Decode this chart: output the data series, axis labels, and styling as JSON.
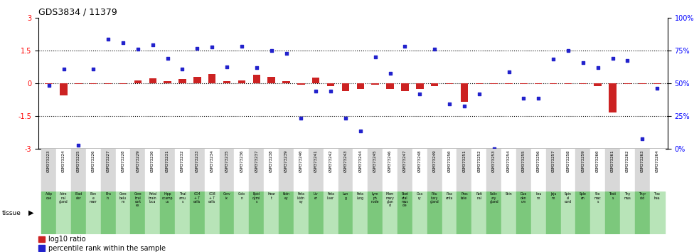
{
  "title": "GDS3834 / 11379",
  "gsm_labels": [
    "GSM373223",
    "GSM373224",
    "GSM373225",
    "GSM373226",
    "GSM373227",
    "GSM373228",
    "GSM373229",
    "GSM373230",
    "GSM373231",
    "GSM373232",
    "GSM373233",
    "GSM373234",
    "GSM373235",
    "GSM373236",
    "GSM373237",
    "GSM373238",
    "GSM373239",
    "GSM373240",
    "GSM373241",
    "GSM373242",
    "GSM373243",
    "GSM373244",
    "GSM373245",
    "GSM373246",
    "GSM373247",
    "GSM373248",
    "GSM373249",
    "GSM373250",
    "GSM373251",
    "GSM373252",
    "GSM373253",
    "GSM373254",
    "GSM373255",
    "GSM373256",
    "GSM373257",
    "GSM373258",
    "GSM373259",
    "GSM373260",
    "GSM373261",
    "GSM373262",
    "GSM373263",
    "GSM373264"
  ],
  "tissue_labels": [
    "Adip\nose",
    "Adre\nnal\ngland",
    "Blad\nder",
    "Bon\ne\nmarr",
    "Bra\nin",
    "Cere\nbelu\nm",
    "Cere\nbral\ncort\nex",
    "Fetal\nbrain\nloca",
    "Hipp\nocamp\nus",
    "Thal\namu\ns",
    "CD4\n+ T\ncells",
    "CD8\n+ T\ncells",
    "Cerv\nix",
    "Colo\nn",
    "Epid\ndymi\ns",
    "Hear\nt",
    "Kidn\ney",
    "Feta\nlkidn\ney",
    "Liv\ner",
    "Feta\nliver",
    "Lun\ng",
    "Feta\nlung",
    "Lym\nph\nnode",
    "Mam\nmary\nglan\nd",
    "Sket\netal\nmus\ncle",
    "Ova\nry",
    "Pitu\nitary\ngland",
    "Plac\nenta",
    "Pros\ntate",
    "Reti\nnal",
    "Saliv\nary\ngland",
    "Skin",
    "Duo\nden\num",
    "Ileu\nm",
    "Jeju\nm",
    "Spin\nal\ncord",
    "Sple\nen",
    "Sto\nmac\ns",
    "Testi\ns",
    "Thy\nmus",
    "Thyr\noid",
    "Trac\nhea"
  ],
  "log10_ratio": [
    -0.05,
    -0.55,
    -0.05,
    -0.05,
    -0.05,
    -0.05,
    0.12,
    0.22,
    0.08,
    0.18,
    0.28,
    0.42,
    0.08,
    0.12,
    0.38,
    0.28,
    0.08,
    -0.08,
    0.25,
    -0.15,
    -0.38,
    -0.28,
    -0.08,
    -0.28,
    -0.38,
    -0.28,
    -0.12,
    -0.05,
    -0.85,
    -0.05,
    -0.05,
    -0.05,
    -0.05,
    -0.05,
    -0.05,
    -0.05,
    -0.05,
    -0.12,
    -1.35,
    -0.05,
    -0.05,
    -0.05
  ],
  "percentile_rank": [
    -0.1,
    0.65,
    -2.85,
    0.65,
    2.0,
    1.85,
    1.55,
    1.75,
    1.15,
    0.65,
    1.6,
    1.65,
    0.75,
    1.7,
    0.7,
    1.5,
    1.35,
    -1.6,
    -0.35,
    -0.35,
    -1.6,
    -2.2,
    1.2,
    0.45,
    1.7,
    -0.5,
    1.55,
    -0.95,
    -1.05,
    -0.5,
    -3.0,
    0.5,
    -0.7,
    -0.7,
    1.1,
    1.5,
    0.95,
    0.7,
    1.15,
    1.05,
    -2.55,
    -0.25
  ],
  "ylim": [
    -3,
    3
  ],
  "hline_positions": [
    -1.5,
    0,
    1.5
  ],
  "bg_color_gsm_alt": "#d8d8d8",
  "bg_color_gsm_main": "#ffffff",
  "bg_color_tissue_dark": "#7cc87c",
  "bg_color_tissue_light": "#b8e4b8",
  "log10_color": "#cc2222",
  "percentile_color": "#2222cc",
  "bar_width": 0.5,
  "legend_log10": "log10 ratio",
  "legend_percentile": "percentile rank within the sample"
}
